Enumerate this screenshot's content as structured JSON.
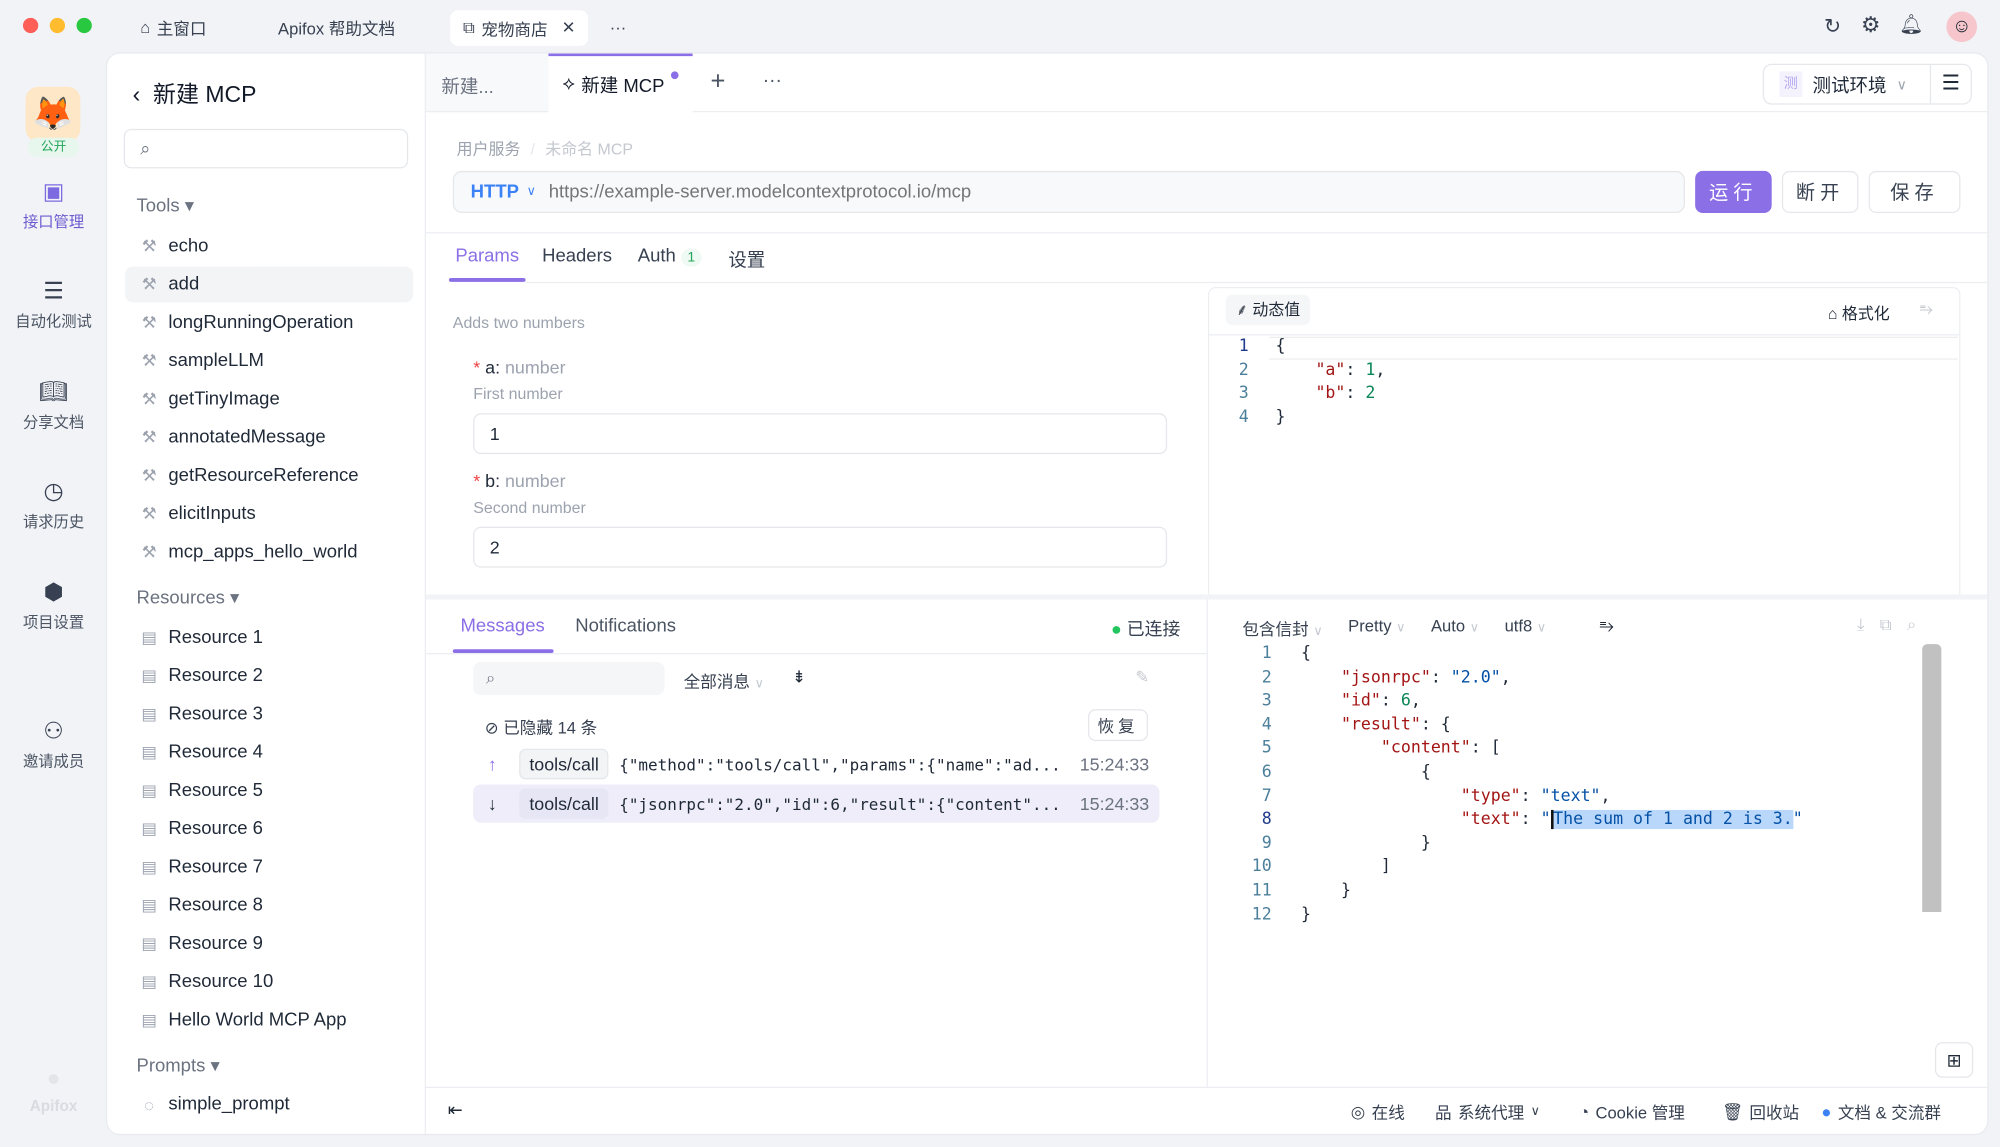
{
  "window": {
    "tabs": [
      {
        "label": "主窗口",
        "icon": "home-icon"
      },
      {
        "label": "Apifox 帮助文档"
      },
      {
        "label": "宠物商店",
        "icon": "external-link-icon",
        "active": true
      }
    ],
    "more": "···"
  },
  "rail": {
    "badge": "公开",
    "items": [
      {
        "label": "接口管理",
        "icon": "api-icon",
        "active": true
      },
      {
        "label": "自动化测试",
        "icon": "automation-icon"
      },
      {
        "label": "分享文档",
        "icon": "book-icon"
      },
      {
        "label": "请求历史",
        "icon": "clock-icon"
      },
      {
        "label": "项目设置",
        "icon": "settings-hex-icon"
      },
      {
        "label": "邀请成员",
        "icon": "user-plus-icon"
      }
    ],
    "logo": "Apifox"
  },
  "sidebar": {
    "title": "新建 MCP",
    "search_placeholder": "",
    "tools_label": "Tools",
    "tools": [
      "echo",
      "add",
      "longRunningOperation",
      "sampleLLM",
      "getTinyImage",
      "annotatedMessage",
      "getResourceReference",
      "elicitInputs",
      "mcp_apps_hello_world"
    ],
    "selected_tool": "add",
    "resources_label": "Resources",
    "resources": [
      "Resource 1",
      "Resource 2",
      "Resource 3",
      "Resource 4",
      "Resource 5",
      "Resource 6",
      "Resource 7",
      "Resource 8",
      "Resource 9",
      "Resource 10",
      "Hello World MCP App"
    ],
    "prompts_label": "Prompts",
    "prompts": [
      "simple_prompt"
    ]
  },
  "tabs": {
    "items": [
      "新建...",
      "新建 MCP"
    ],
    "env": {
      "badge": "测",
      "label": "测试环境"
    }
  },
  "breadcrumb": [
    "用户服务",
    "未命名 MCP"
  ],
  "request": {
    "method": "HTTP",
    "url_placeholder": "https://example-server.modelcontextprotocol.io/mcp",
    "run": "运行",
    "disconnect": "断开",
    "save": "保存"
  },
  "req_tabs": {
    "params": "Params",
    "headers": "Headers",
    "auth": "Auth",
    "auth_count": "1",
    "settings": "设置"
  },
  "params": {
    "description": "Adds two numbers",
    "fields": [
      {
        "name": "a:",
        "type": "number",
        "hint": "First number",
        "value": "1"
      },
      {
        "name": "b:",
        "type": "number",
        "hint": "Second number",
        "value": "2"
      }
    ]
  },
  "editor": {
    "dynamic": "动态值",
    "format": "格式化",
    "lines": [
      "1",
      "2",
      "3",
      "4"
    ],
    "code": {
      "l1": "{",
      "ka": "\"a\"",
      "va": "1",
      "kb": "\"b\"",
      "vb": "2",
      "l4": "}"
    }
  },
  "messages": {
    "tabs": [
      "Messages",
      "Notifications"
    ],
    "status": "已连接",
    "status_color": "#22c55e",
    "filter": "全部消息",
    "hidden": "已隐藏  14  条",
    "restore": "恢复",
    "rows": [
      {
        "dir": "up",
        "method": "tools/call",
        "body": "{\"method\":\"tools/call\",\"params\":{\"name\":\"ad...",
        "time": "15:24:33"
      },
      {
        "dir": "down",
        "method": "tools/call",
        "body": "{\"jsonrpc\":\"2.0\",\"id\":6,\"result\":{\"content\"...",
        "time": "15:24:33"
      }
    ]
  },
  "response": {
    "toolbar": [
      "包含信封",
      "Pretty",
      "Auto",
      "utf8"
    ],
    "lines": [
      "1",
      "2",
      "3",
      "4",
      "5",
      "6",
      "7",
      "8",
      "9",
      "10",
      "11",
      "12"
    ],
    "code": {
      "jsonrpc_k": "\"jsonrpc\"",
      "jsonrpc_v": "\"2.0\"",
      "id_k": "\"id\"",
      "id_v": "6",
      "result_k": "\"result\"",
      "content_k": "\"content\"",
      "type_k": "\"type\"",
      "type_v": "\"text\"",
      "text_k": "\"text\"",
      "text_v": "The sum of 1 and 2 is 3."
    }
  },
  "footer": {
    "online": "在线",
    "proxy": "系统代理",
    "cookie": "Cookie 管理",
    "trash": "回收站",
    "docs": "文档 & 交流群"
  },
  "colors": {
    "accent": "#8b6fe6",
    "link": "#3b82f6"
  }
}
